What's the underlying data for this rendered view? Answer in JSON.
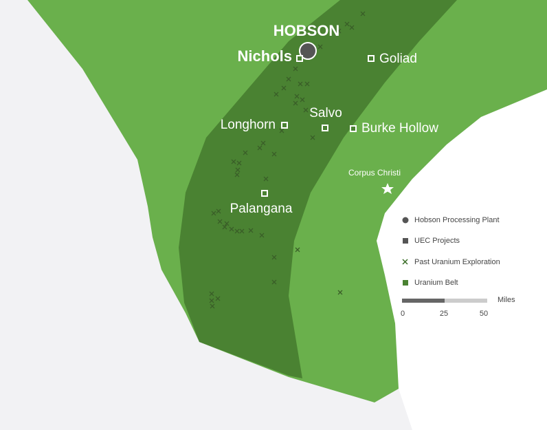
{
  "map": {
    "plant": "HOBSON",
    "projects": [
      "Nichols",
      "Goliad",
      "Salvo",
      "Longhorn",
      "Burke Hollow",
      "Palangana"
    ],
    "city": "Corpus Christi",
    "legend": [
      "Hobson Processing Plant",
      "UEC Projects",
      "Past Uranium Exploration",
      "Uranium Belt"
    ],
    "scale": {
      "unit": "Miles",
      "ticks": [
        0,
        25,
        50
      ]
    }
  }
}
